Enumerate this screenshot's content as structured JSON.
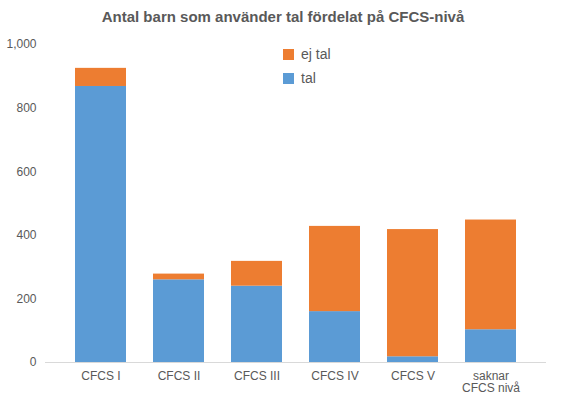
{
  "chart_data": {
    "type": "bar",
    "stacked": true,
    "title": "Antal barn som använder tal fördelat på CFCS-nivå",
    "categories": [
      "CFCS I",
      "CFCS II",
      "CFCS III",
      "CFCS IV",
      "CFCS V",
      "saknar CFCS nivå"
    ],
    "series": [
      {
        "name": "tal",
        "color": "#5b9bd5",
        "values": [
          868,
          260,
          240,
          160,
          18,
          103
        ]
      },
      {
        "name": "ej tal",
        "color": "#ed7d31",
        "values": [
          57,
          18,
          78,
          268,
          400,
          345
        ]
      }
    ],
    "ylim": [
      0,
      1000
    ],
    "yticks": [
      0,
      200,
      400,
      600,
      800,
      1000
    ],
    "grid": false,
    "legend": "top"
  }
}
